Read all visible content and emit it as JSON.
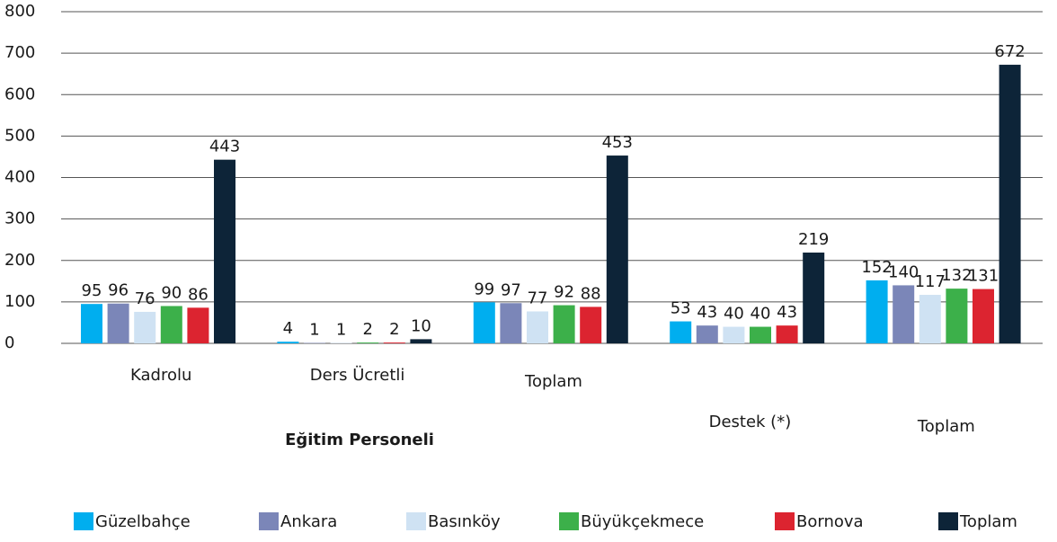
{
  "chart_data": {
    "type": "bar",
    "categories": [
      "Kadrolu",
      "Ders Ücretli",
      "Toplam",
      "Destek (*)",
      "Toplam"
    ],
    "group_label": "Eğitim Personeli",
    "series": [
      {
        "name": "Güzelbahçe",
        "color": "#00aeef",
        "values": [
          95,
          4,
          99,
          53,
          152
        ]
      },
      {
        "name": "Ankara",
        "color": "#7b86b8",
        "values": [
          96,
          1,
          97,
          43,
          140
        ]
      },
      {
        "name": "Basınköy",
        "color": "#cfe2f3",
        "values": [
          76,
          1,
          77,
          40,
          117
        ]
      },
      {
        "name": "Büyükçekmece",
        "color": "#3cb04a",
        "values": [
          90,
          2,
          92,
          40,
          132
        ]
      },
      {
        "name": "Bornova",
        "color": "#dc2430",
        "values": [
          86,
          2,
          88,
          43,
          131
        ]
      },
      {
        "name": "Toplam",
        "color": "#0d2438",
        "values": [
          443,
          10,
          453,
          219,
          672
        ]
      }
    ],
    "ylim": [
      0,
      800
    ],
    "yticks": [
      0,
      100,
      200,
      300,
      400,
      500,
      600,
      700,
      800
    ],
    "grid": true,
    "legend": "bottom"
  }
}
